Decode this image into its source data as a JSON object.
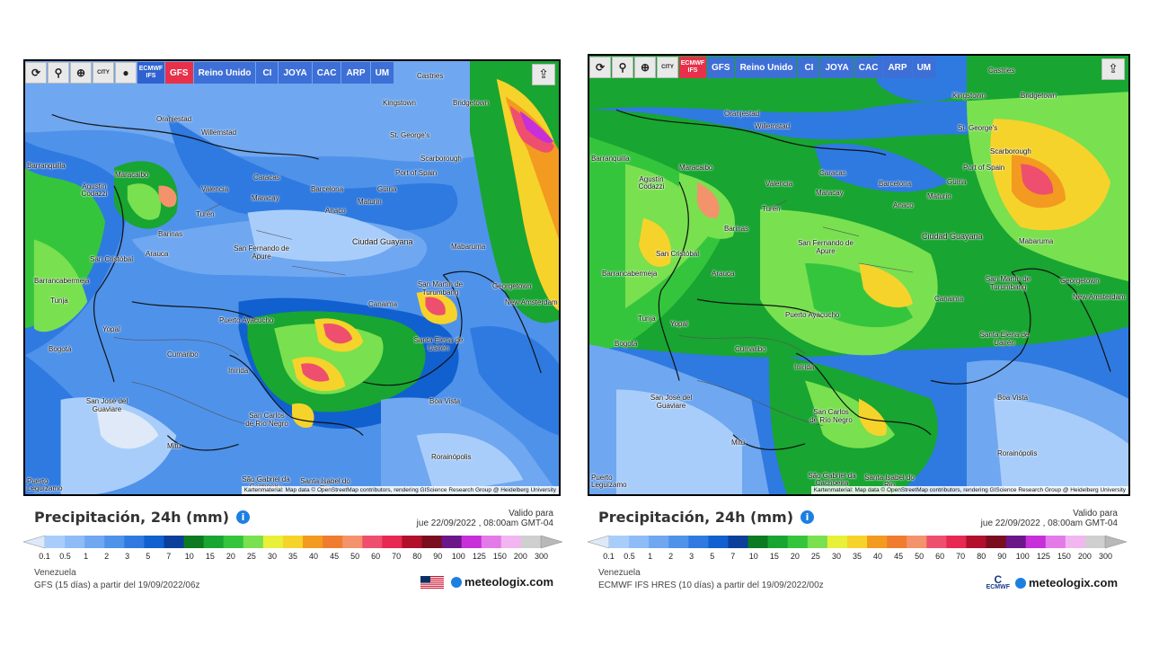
{
  "legend": {
    "title": "Precipitación, 24h (mm)",
    "valid_label": "Valido para",
    "valid_date": "jue 22/09/2022 , 08:00am GMT-04",
    "thresholds": [
      "0.1",
      "0.5",
      "1",
      "2",
      "3",
      "5",
      "7",
      "10",
      "15",
      "20",
      "25",
      "30",
      "35",
      "40",
      "45",
      "50",
      "60",
      "70",
      "80",
      "90",
      "100",
      "125",
      "150",
      "200",
      "300"
    ],
    "colors": [
      "#a9cdfa",
      "#8ebcf6",
      "#6fa7f0",
      "#4f92ea",
      "#2f7ae0",
      "#1160cf",
      "#0b3f9a",
      "#0c7a21",
      "#18a531",
      "#35c53d",
      "#79e050",
      "#e8f039",
      "#f6d32a",
      "#f39a20",
      "#f07d2f",
      "#f3936b",
      "#ef4f6e",
      "#e62853",
      "#b10f2c",
      "#7a0e1e",
      "#6b1689",
      "#c72fd9",
      "#e37ae8",
      "#f1b6f0",
      "#cfcfcf"
    ]
  },
  "map_labels": [
    "Castries",
    "Kingstown",
    "Bridgetown",
    "Oranjestad",
    "Willemstad",
    "St. George's",
    "Scarborough",
    "Barranquilla",
    "Maracaibo",
    "Caracas",
    "Port of Spain",
    "Agustín Codazzi",
    "Valencia",
    "Maracay",
    "Barcelona",
    "Güiria",
    "Maturin",
    "Turén",
    "Anaco",
    "Barinas",
    "San Fernando de Apure",
    "Ciudad Guayana",
    "Mabaruma",
    "San Cristóbal",
    "Arauca",
    "Barrancabermeja",
    "San Martín de Turumbang",
    "Georgetown",
    "New Amsterdam",
    "Canaima",
    "Tunja",
    "Yopal",
    "Puerto Ayacucho",
    "Santa Elena de Uairén",
    "Bogotá",
    "Cumaribo",
    "Inírida",
    "Boa Vista",
    "San José del Guaviare",
    "San Carlos de Río Negro",
    "Mitú",
    "Rorainópolis",
    "São Gabriel da Cachoeira",
    "Santa Isabel do Rio",
    "Puerto Leguízamo"
  ],
  "panels": [
    {
      "toolbar": {
        "refresh_icon": "refresh-icon",
        "location_icon": "location-pin-icon",
        "zoom_icon": "zoom-icon",
        "city_label": "CITY",
        "model_label": "ECMWF IFS",
        "buttons": [
          "GFS",
          "Reino Unido",
          "CI",
          "JOYA",
          "CAC",
          "ARP",
          "UM"
        ],
        "active": "GFS"
      },
      "attribution": "Kartenmaterial: Map data © OpenStreetMap contributors, rendering GIScience Research Group @ Heidelberg University",
      "region": "Venezuela",
      "model_run": "GFS (15 días) a partir del 19/09/2022/06z",
      "brand": "meteologix.com",
      "provider_logo": "us-flag"
    },
    {
      "toolbar": {
        "refresh_icon": "refresh-icon",
        "location_icon": "location-pin-icon",
        "zoom_icon": "zoom-icon",
        "city_label": "CITY",
        "model_label": "ECMWF IFS",
        "buttons": [
          "GFS",
          "Reino Unido",
          "CI",
          "JOYA",
          "CAC",
          "ARP",
          "UM"
        ],
        "active": "ECMWF IFS"
      },
      "attribution": "Kartenmaterial: Map data © OpenStreetMap contributors, rendering GIScience Research Group @ Heidelberg University",
      "region": "Venezuela",
      "model_run": "ECMWF IFS HRES (10 días) a partir del 19/09/2022/00z",
      "brand": "meteologix.com",
      "provider_logo": "ECMWF",
      "provider_logo_text": "ECMWF"
    }
  ]
}
